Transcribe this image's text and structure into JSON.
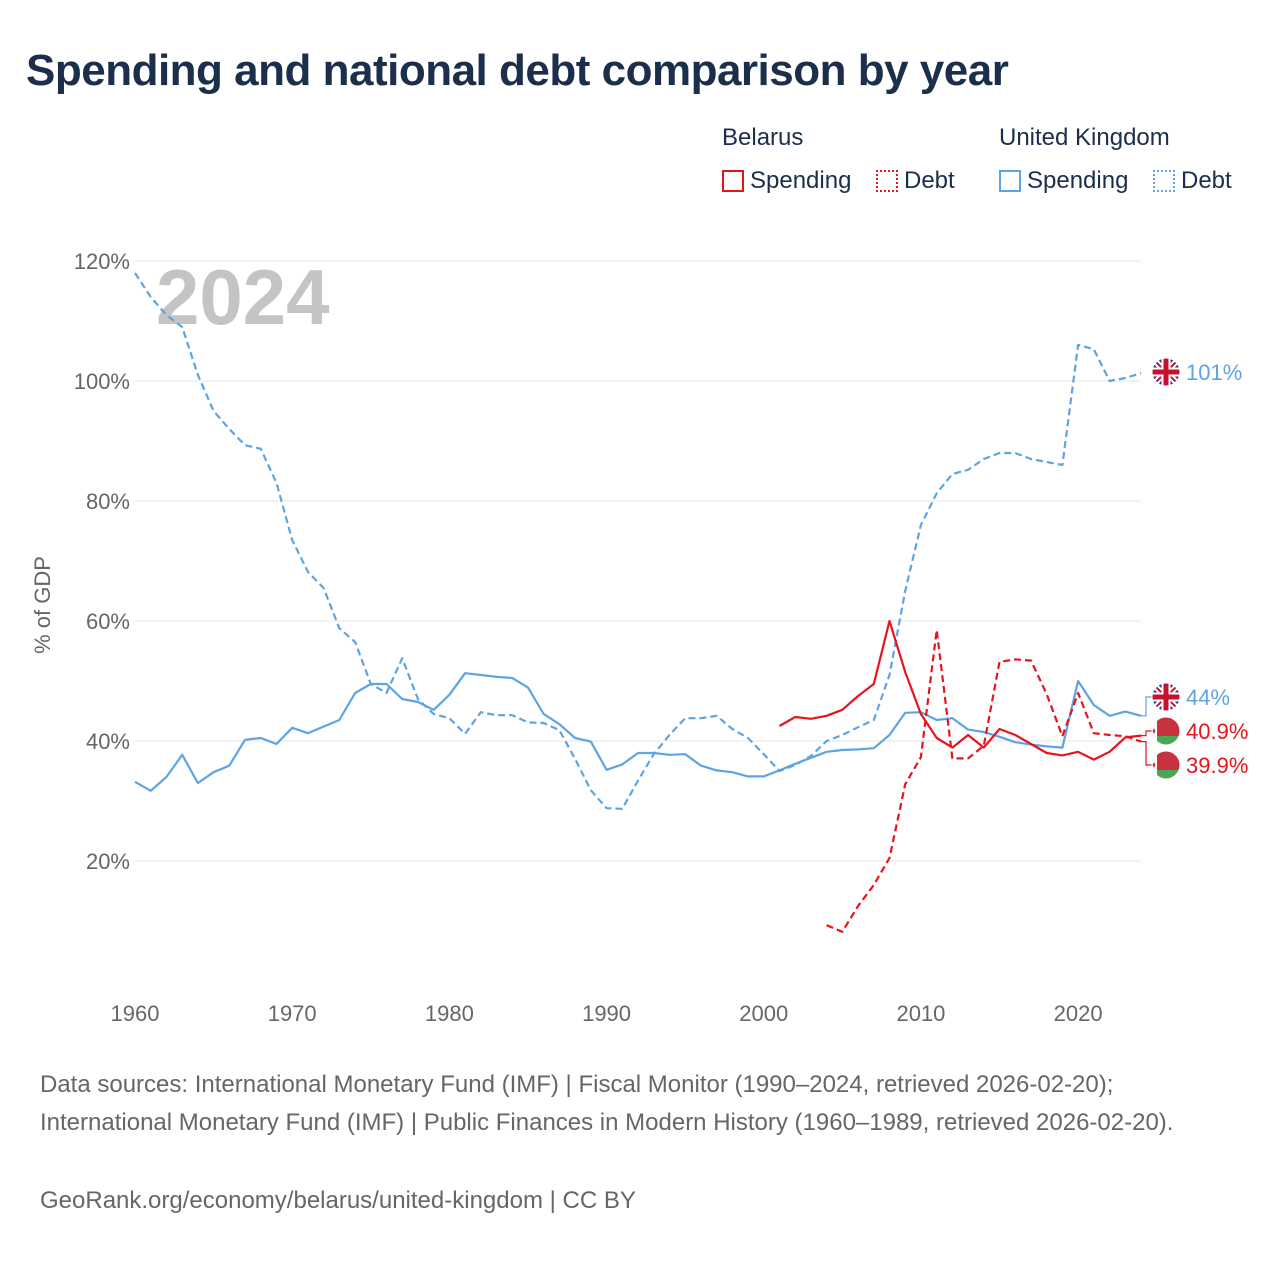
{
  "title": "Spending and national debt comparison by year",
  "legend": {
    "groups": [
      {
        "name": "Belarus",
        "color": "#e8141c",
        "items": [
          {
            "label": "Spending",
            "style": "solid"
          },
          {
            "label": "Debt",
            "style": "dotted"
          }
        ]
      },
      {
        "name": "United Kingdom",
        "color": "#5da4e4",
        "items": [
          {
            "label": "Spending",
            "style": "solid"
          },
          {
            "label": "Debt",
            "style": "dotted"
          }
        ]
      }
    ]
  },
  "footer": {
    "sources": "Data sources: International Monetary Fund (IMF) | Fiscal Monitor (1990–2024, retrieved 2026-02-20); International Monetary Fund (IMF) | Public Finances in Modern History (1960–1989, retrieved 2026-02-20).",
    "credit": "GeoRank.org/economy/belarus/united-kingdom | CC BY"
  },
  "chart_data": {
    "type": "line",
    "title": "Spending and national debt comparison by year",
    "year_watermark": "2024",
    "ylabel": "% of GDP",
    "xlabel": "",
    "xlim": [
      1960,
      2024
    ],
    "ylim": [
      0,
      120
    ],
    "x_ticks": [
      "1960",
      "1970",
      "1980",
      "1990",
      "2000",
      "2010",
      "2020"
    ],
    "y_ticks": [
      {
        "value": 20,
        "label": "20%"
      },
      {
        "value": 40,
        "label": "40%"
      },
      {
        "value": 60,
        "label": "60%"
      },
      {
        "value": 80,
        "label": "80%"
      },
      {
        "value": 100,
        "label": "100%"
      },
      {
        "value": 120,
        "label": "120%"
      }
    ],
    "grid": true,
    "series": [
      {
        "name": "United Kingdom Debt",
        "country": "United Kingdom",
        "metric": "Debt",
        "color": "#5da4e4",
        "dashed": true,
        "end_label": "101%",
        "x": [
          1960,
          1961,
          1962,
          1963,
          1964,
          1965,
          1966,
          1967,
          1968,
          1969,
          1970,
          1971,
          1972,
          1973,
          1974,
          1975,
          1976,
          1977,
          1978,
          1979,
          1980,
          1981,
          1982,
          1983,
          1984,
          1985,
          1986,
          1987,
          1988,
          1989,
          1990,
          1991,
          1992,
          1993,
          1994,
          1995,
          1996,
          1997,
          1998,
          1999,
          2000,
          2001,
          2002,
          2003,
          2004,
          2005,
          2006,
          2007,
          2008,
          2009,
          2010,
          2011,
          2012,
          2013,
          2014,
          2015,
          2016,
          2017,
          2018,
          2019,
          2020,
          2021,
          2022,
          2023,
          2024
        ],
        "values": [
          118,
          114,
          111,
          109,
          101,
          95,
          92,
          89.3,
          88.7,
          83,
          73.5,
          68.2,
          65.5,
          58.8,
          56.5,
          49.5,
          48,
          53.8,
          47,
          44.5,
          43.8,
          41.2,
          44.8,
          44.3,
          44.3,
          43.1,
          43,
          41.8,
          37,
          31.8,
          28.8,
          28.7,
          33.4,
          37.8,
          41,
          43.8,
          43.8,
          44.2,
          42,
          40.5,
          37.8,
          35,
          36,
          37.5,
          40,
          41,
          42.3,
          43.5,
          51,
          65,
          76,
          81.3,
          84.5,
          85.2,
          87,
          88,
          88,
          87,
          86.5,
          86,
          106,
          105.3,
          100,
          100.5,
          101.3
        ]
      },
      {
        "name": "United Kingdom Spending",
        "country": "United Kingdom",
        "metric": "Spending",
        "color": "#5da4e4",
        "dashed": false,
        "end_label": "44%",
        "x": [
          1960,
          1961,
          1962,
          1963,
          1964,
          1965,
          1966,
          1967,
          1968,
          1969,
          1970,
          1971,
          1972,
          1973,
          1974,
          1975,
          1976,
          1977,
          1978,
          1979,
          1980,
          1981,
          1982,
          1983,
          1984,
          1985,
          1986,
          1987,
          1988,
          1989,
          1990,
          1991,
          1992,
          1993,
          1994,
          1995,
          1996,
          1997,
          1998,
          1999,
          2000,
          2001,
          2002,
          2003,
          2004,
          2005,
          2006,
          2007,
          2008,
          2009,
          2010,
          2011,
          2012,
          2013,
          2014,
          2015,
          2016,
          2017,
          2018,
          2019,
          2020,
          2021,
          2022,
          2023,
          2024
        ],
        "values": [
          33.2,
          31.7,
          34,
          37.7,
          33,
          34.8,
          35.9,
          40.2,
          40.5,
          39.5,
          42.2,
          41.3,
          42.4,
          43.5,
          48,
          49.5,
          49.5,
          47,
          46.5,
          45.2,
          47.7,
          51.3,
          51,
          50.7,
          50.5,
          48.9,
          44.5,
          42.8,
          40.5,
          39.9,
          35.2,
          36.1,
          38,
          38,
          37.7,
          37.8,
          35.9,
          35.1,
          34.8,
          34.1,
          34.1,
          35.1,
          36.2,
          37.2,
          38.2,
          38.5,
          38.6,
          38.8,
          41,
          44.7,
          44.8,
          43.5,
          43.8,
          41.9,
          41.5,
          40.7,
          39.8,
          39.4,
          39.1,
          38.9,
          50,
          46,
          44.2,
          44.9,
          44.2
        ]
      },
      {
        "name": "Belarus Spending",
        "country": "Belarus",
        "metric": "Spending",
        "color": "#e8141c",
        "dashed": false,
        "end_label": "40.9%",
        "x": [
          2001,
          2002,
          2003,
          2004,
          2005,
          2006,
          2007,
          2008,
          2009,
          2010,
          2011,
          2012,
          2013,
          2014,
          2015,
          2016,
          2017,
          2018,
          2019,
          2020,
          2021,
          2022,
          2023,
          2024
        ],
        "values": [
          42.5,
          44,
          43.7,
          44.2,
          45.2,
          47.5,
          49.5,
          60,
          51.5,
          44.5,
          40.5,
          38.9,
          41,
          38.9,
          42,
          41,
          39.5,
          38,
          37.6,
          38.2,
          36.9,
          38.2,
          40.6,
          40.9
        ]
      },
      {
        "name": "Belarus Debt",
        "country": "Belarus",
        "metric": "Debt",
        "color": "#e8141c",
        "dashed": true,
        "end_label": "39.9%",
        "x": [
          2004,
          2005,
          2006,
          2007,
          2008,
          2009,
          2010,
          2011,
          2012,
          2013,
          2014,
          2015,
          2016,
          2017,
          2018,
          2019,
          2020,
          2021,
          2022,
          2023,
          2024
        ],
        "values": [
          9.3,
          8.2,
          12.5,
          16,
          20.5,
          32.8,
          37.3,
          58.5,
          37.1,
          37.1,
          39.2,
          53.2,
          53.6,
          53.4,
          47.8,
          40.8,
          48,
          41.3,
          41,
          40.8,
          39.9
        ]
      }
    ]
  }
}
